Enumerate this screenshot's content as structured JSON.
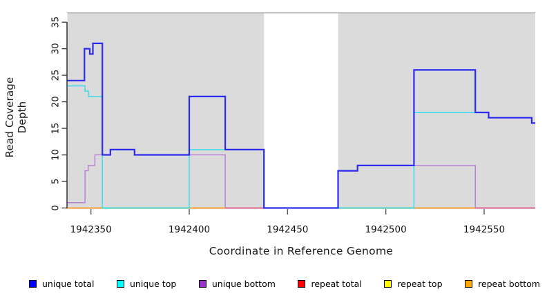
{
  "chart_data": {
    "type": "line",
    "subtype": "step-coverage",
    "title": "",
    "xlabel": "Coordinate in Reference Genome",
    "ylabel": "Read Coverage Depth",
    "xlim": [
      1942338,
      1942576
    ],
    "ylim": [
      0,
      36.75
    ],
    "x_ticks": [
      1942350,
      1942400,
      1942450,
      1942500,
      1942550
    ],
    "y_ticks": [
      0,
      5,
      10,
      15,
      20,
      25,
      30,
      35
    ],
    "grid": "off",
    "plot_bg": "#dbdbdb",
    "gap_bg": "#ffffff",
    "gap_region": {
      "start": 1942438,
      "end": 1942475.7
    },
    "series": [
      {
        "name": "unique bottom",
        "color": "#b273d6",
        "width": 1.3,
        "points": [
          [
            1942338,
            1
          ],
          [
            1942347,
            7
          ],
          [
            1942348.6,
            8
          ],
          [
            1942352,
            10
          ],
          [
            1942360,
            11
          ],
          [
            1942372,
            10
          ],
          [
            1942418.3,
            0
          ],
          [
            1942475.7,
            7
          ],
          [
            1942485.6,
            8
          ],
          [
            1942545.5,
            0
          ]
        ]
      },
      {
        "name": "unique top",
        "color": "#2edcee",
        "width": 1.4,
        "points": [
          [
            1942338,
            23
          ],
          [
            1942347,
            22
          ],
          [
            1942348.8,
            21
          ],
          [
            1942355.8,
            0
          ],
          [
            1942400,
            11
          ],
          [
            1942438,
            0
          ],
          [
            1942514.3,
            18
          ],
          [
            1942552.3,
            17
          ],
          [
            1942574.2,
            16
          ]
        ]
      },
      {
        "name": "unique total",
        "color": "#2a2af0",
        "width": 2.2,
        "points": [
          [
            1942338,
            24
          ],
          [
            1942346.7,
            30
          ],
          [
            1942349.4,
            29
          ],
          [
            1942351,
            31
          ],
          [
            1942355.8,
            10
          ],
          [
            1942359.9,
            11
          ],
          [
            1942372.2,
            10
          ],
          [
            1942400,
            21
          ],
          [
            1942418.3,
            11
          ],
          [
            1942438,
            0
          ],
          [
            1942475.7,
            7
          ],
          [
            1942485.6,
            8
          ],
          [
            1942514.3,
            26
          ],
          [
            1942545.5,
            18
          ],
          [
            1942552.3,
            17
          ],
          [
            1942574.2,
            16
          ]
        ]
      }
    ],
    "zero_line_segments": [
      {
        "color": "#ff9e1b",
        "from": 1942338,
        "to": 1942355.8
      },
      {
        "color": "#74c476",
        "from": 1942355.8,
        "to": 1942400
      },
      {
        "color": "#ff9e1b",
        "from": 1942400,
        "to": 1942418.3
      },
      {
        "color": "#e0608c",
        "from": 1942418.3,
        "to": 1942438
      },
      {
        "color": "#74c476",
        "from": 1942475.7,
        "to": 1942514.3
      },
      {
        "color": "#ff9e1b",
        "from": 1942514.3,
        "to": 1942545.5
      },
      {
        "color": "#e0608c",
        "from": 1942545.5,
        "to": 1942576
      }
    ],
    "legend": [
      {
        "label": "unique total",
        "color": "#0000ff"
      },
      {
        "label": "unique top",
        "color": "#00ffff"
      },
      {
        "label": "unique bottom",
        "color": "#9932cc"
      },
      {
        "label": "repeat total",
        "color": "#ff0000"
      },
      {
        "label": "repeat top",
        "color": "#ffff00"
      },
      {
        "label": "repeat bottom",
        "color": "#ffa500"
      }
    ]
  }
}
